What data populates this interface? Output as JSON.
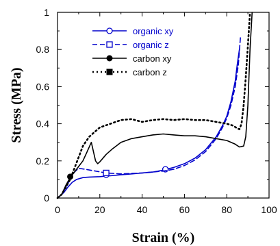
{
  "chart_data": {
    "type": "line",
    "title": "",
    "xlabel": "Strain (%)",
    "ylabel": "Stress (MPa)",
    "xlim": [
      0,
      100
    ],
    "ylim": [
      0,
      1
    ],
    "x_ticks": [
      "0",
      "20",
      "40",
      "60",
      "80",
      "100"
    ],
    "y_ticks": [
      "0",
      "0.2",
      "0.4",
      "0.6",
      "0.8",
      "1"
    ],
    "grid": false,
    "legend_position": "top-center",
    "series": [
      {
        "name": "organic xy",
        "color": "#0000cc",
        "line_style": "solid",
        "marker": "open-circle",
        "marker_points": [
          [
            23,
            0.125
          ],
          [
            51,
            0.155
          ]
        ],
        "legend_label": "organic xy",
        "points": [
          [
            0,
            0
          ],
          [
            3,
            0.03
          ],
          [
            5,
            0.06
          ],
          [
            7,
            0.085
          ],
          [
            9,
            0.1
          ],
          [
            12,
            0.11
          ],
          [
            15,
            0.113
          ],
          [
            20,
            0.115
          ],
          [
            25,
            0.12
          ],
          [
            30,
            0.125
          ],
          [
            35,
            0.13
          ],
          [
            40,
            0.135
          ],
          [
            45,
            0.14
          ],
          [
            50,
            0.15
          ],
          [
            55,
            0.165
          ],
          [
            60,
            0.185
          ],
          [
            65,
            0.215
          ],
          [
            70,
            0.26
          ],
          [
            75,
            0.33
          ],
          [
            78,
            0.39
          ],
          [
            80,
            0.44
          ],
          [
            82,
            0.52
          ],
          [
            84,
            0.63
          ],
          [
            85,
            0.72
          ],
          [
            86,
            0.8
          ]
        ]
      },
      {
        "name": "organic z",
        "color": "#0000cc",
        "line_style": "dashed",
        "marker": "open-square",
        "marker_points": [
          [
            23,
            0.135
          ]
        ],
        "legend_label": "organic z",
        "points": [
          [
            0,
            0
          ],
          [
            2,
            0.02
          ],
          [
            4,
            0.06
          ],
          [
            6,
            0.1
          ],
          [
            8,
            0.14
          ],
          [
            10,
            0.16
          ],
          [
            13,
            0.155
          ],
          [
            18,
            0.145
          ],
          [
            23,
            0.135
          ],
          [
            30,
            0.13
          ],
          [
            40,
            0.135
          ],
          [
            50,
            0.145
          ],
          [
            55,
            0.155
          ],
          [
            60,
            0.175
          ],
          [
            65,
            0.205
          ],
          [
            70,
            0.25
          ],
          [
            75,
            0.32
          ],
          [
            78,
            0.38
          ],
          [
            80,
            0.43
          ],
          [
            82,
            0.5
          ],
          [
            84,
            0.6
          ],
          [
            85.5,
            0.72
          ],
          [
            86.5,
            0.87
          ]
        ]
      },
      {
        "name": "carbon xy",
        "color": "#000000",
        "line_style": "solid",
        "marker": "filled-circle",
        "marker_points": [
          [
            6,
            0.115
          ]
        ],
        "legend_label": "carbon xy",
        "points": [
          [
            0,
            0
          ],
          [
            2,
            0.02
          ],
          [
            4,
            0.07
          ],
          [
            6,
            0.11
          ],
          [
            8,
            0.14
          ],
          [
            10,
            0.17
          ],
          [
            12,
            0.2
          ],
          [
            14,
            0.25
          ],
          [
            16,
            0.3
          ],
          [
            17,
            0.25
          ],
          [
            18,
            0.2
          ],
          [
            19,
            0.185
          ],
          [
            20,
            0.195
          ],
          [
            23,
            0.235
          ],
          [
            26,
            0.265
          ],
          [
            30,
            0.3
          ],
          [
            35,
            0.32
          ],
          [
            40,
            0.33
          ],
          [
            45,
            0.34
          ],
          [
            50,
            0.345
          ],
          [
            55,
            0.34
          ],
          [
            60,
            0.335
          ],
          [
            65,
            0.335
          ],
          [
            70,
            0.33
          ],
          [
            75,
            0.32
          ],
          [
            80,
            0.31
          ],
          [
            84,
            0.29
          ],
          [
            86,
            0.275
          ],
          [
            88,
            0.28
          ],
          [
            89,
            0.33
          ],
          [
            90,
            0.5
          ],
          [
            91,
            0.8
          ],
          [
            92,
            1.0
          ]
        ]
      },
      {
        "name": "carbon z",
        "color": "#000000",
        "line_style": "dotted",
        "marker": "filled-square",
        "marker_points": [],
        "legend_label": "carbon z",
        "points": [
          [
            0,
            0
          ],
          [
            2,
            0.02
          ],
          [
            4,
            0.06
          ],
          [
            6,
            0.1
          ],
          [
            8,
            0.16
          ],
          [
            10,
            0.22
          ],
          [
            12,
            0.28
          ],
          [
            15,
            0.33
          ],
          [
            18,
            0.36
          ],
          [
            20,
            0.38
          ],
          [
            25,
            0.4
          ],
          [
            30,
            0.42
          ],
          [
            35,
            0.425
          ],
          [
            40,
            0.41
          ],
          [
            45,
            0.42
          ],
          [
            50,
            0.425
          ],
          [
            55,
            0.42
          ],
          [
            60,
            0.425
          ],
          [
            65,
            0.42
          ],
          [
            70,
            0.42
          ],
          [
            75,
            0.41
          ],
          [
            80,
            0.4
          ],
          [
            83,
            0.39
          ],
          [
            85,
            0.375
          ],
          [
            86,
            0.37
          ],
          [
            87,
            0.4
          ],
          [
            88,
            0.5
          ],
          [
            89,
            0.65
          ],
          [
            90,
            0.82
          ],
          [
            91,
            1.0
          ]
        ]
      }
    ]
  }
}
